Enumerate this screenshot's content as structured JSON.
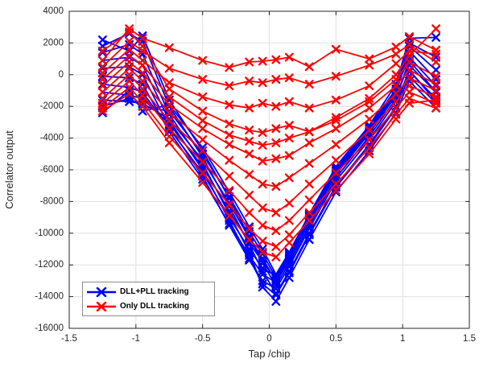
{
  "axes": {
    "xlabel": "Tap /chip",
    "ylabel": "Correlator output",
    "xlim": [
      -1.5,
      1.5
    ],
    "ylim": [
      -16000,
      4000
    ],
    "xticks": [
      -1.5,
      -1,
      -0.5,
      0,
      0.5,
      1,
      1.5
    ],
    "yticks": [
      4000,
      2000,
      0,
      -2000,
      -4000,
      -6000,
      -8000,
      -10000,
      -12000,
      -14000,
      -16000
    ],
    "grid": true,
    "grid_color": "#e0e0e0",
    "axis_color": "#262626",
    "tick_label_color": "#262626"
  },
  "legend": {
    "position": "lower left",
    "items": [
      {
        "label": "DLL+PLL tracking",
        "color": "#0000ff"
      },
      {
        "label": "Only DLL tracking",
        "color": "#ff0000"
      }
    ]
  },
  "chart_data": {
    "type": "line",
    "title": "",
    "xlabel": "Tap /chip",
    "ylabel": "Correlator output",
    "xlim": [
      -1.5,
      1.5
    ],
    "ylim": [
      -16000,
      4000
    ],
    "marker": "x",
    "x": [
      -1.25,
      -1.05,
      -0.95,
      -0.75,
      -0.5,
      -0.3,
      -0.15,
      -0.05,
      0.05,
      0.15,
      0.3,
      0.5,
      0.75,
      0.95,
      1.05,
      1.25
    ],
    "series": [
      {
        "group": "DLL+PLL tracking",
        "color": "#0000ff",
        "values": [
          2200,
          1500,
          2450,
          -1600,
          -4800,
          -7800,
          -10200,
          -11900,
          -13300,
          -11900,
          -9500,
          -6500,
          -3900,
          -1500,
          900,
          -1100
        ]
      },
      {
        "group": "DLL+PLL tracking",
        "color": "#0000ff",
        "values": [
          1800,
          2600,
          2100,
          -2000,
          -5200,
          -8300,
          -10700,
          -12400,
          -13800,
          -12400,
          -10000,
          -7000,
          -4400,
          -2000,
          300,
          -1700
        ]
      },
      {
        "group": "DLL+PLL tracking",
        "color": "#0000ff",
        "values": [
          1400,
          1900,
          1300,
          -2500,
          -5600,
          -8800,
          -11200,
          -13400,
          -14300,
          -12800,
          -10400,
          -7400,
          -4800,
          -2400,
          -400,
          -2100
        ]
      },
      {
        "group": "DLL+PLL tracking",
        "color": "#0000ff",
        "values": [
          900,
          1100,
          600,
          -2900,
          -6000,
          -9200,
          -11600,
          -13200,
          -13900,
          -12500,
          -10100,
          -7100,
          -4500,
          -2100,
          -100,
          -1800
        ]
      },
      {
        "group": "DLL+PLL tracking",
        "color": "#0000ff",
        "values": [
          400,
          500,
          0,
          -3300,
          -6400,
          -9500,
          -11700,
          -13000,
          -13500,
          -12100,
          -9700,
          -6700,
          -4100,
          -1700,
          200,
          -1500
        ]
      },
      {
        "group": "DLL+PLL tracking",
        "color": "#0000ff",
        "values": [
          -100,
          -200,
          -600,
          -3600,
          -6600,
          -9400,
          -11400,
          -12600,
          -13100,
          -11700,
          -9300,
          -6300,
          -3700,
          -1300,
          600,
          -1100
        ]
      },
      {
        "group": "DLL+PLL tracking",
        "color": "#0000ff",
        "values": [
          -600,
          -800,
          -1100,
          -3400,
          -6200,
          -9000,
          -11000,
          -12200,
          -12700,
          -11300,
          -8900,
          -5900,
          -3300,
          -900,
          1100,
          -700
        ]
      },
      {
        "group": "DLL+PLL tracking",
        "color": "#0000ff",
        "values": [
          -1100,
          -1300,
          -1500,
          -3100,
          -5800,
          -8600,
          -10600,
          -11800,
          -12900,
          -11500,
          -9100,
          -6100,
          -3500,
          -1100,
          1500,
          -300
        ]
      },
      {
        "group": "DLL+PLL tracking",
        "color": "#0000ff",
        "values": [
          -1600,
          -1700,
          -1800,
          -2800,
          -5400,
          -8100,
          -10300,
          -11600,
          -13000,
          -11600,
          -9200,
          -6200,
          -3600,
          -1200,
          1800,
          300
        ]
      },
      {
        "group": "DLL+PLL tracking",
        "color": "#0000ff",
        "values": [
          -2000,
          -1500,
          -2000,
          -2300,
          -5000,
          -7700,
          -9900,
          -11300,
          -12800,
          -11400,
          -9000,
          -6000,
          -3400,
          -1000,
          2000,
          1100
        ]
      },
      {
        "group": "DLL+PLL tracking",
        "color": "#0000ff",
        "values": [
          -2400,
          -1000,
          -2300,
          -1900,
          -4600,
          -7400,
          -9600,
          -11000,
          -12600,
          -11200,
          -8800,
          -5800,
          -3200,
          -600,
          2300,
          2350
        ]
      },
      {
        "group": "Only DLL tracking",
        "color": "#ff0000",
        "values": [
          900,
          2900,
          2300,
          1700,
          900,
          450,
          800,
          850,
          950,
          1100,
          500,
          1600,
          1000,
          1750,
          2400,
          1550
        ]
      },
      {
        "group": "Only DLL tracking",
        "color": "#ff0000",
        "values": [
          500,
          2100,
          1500,
          400,
          -300,
          -700,
          -400,
          -500,
          -300,
          -200,
          -600,
          -100,
          600,
          1300,
          1900,
          800
        ]
      },
      {
        "group": "Only DLL tracking",
        "color": "#ff0000",
        "values": [
          100,
          1600,
          900,
          -500,
          -1400,
          -1900,
          -2100,
          -1800,
          -2000,
          -1700,
          -2100,
          -1600,
          -700,
          700,
          1500,
          1300
        ]
      },
      {
        "group": "Only DLL tracking",
        "color": "#ff0000",
        "values": [
          1500,
          2700,
          1800,
          -900,
          -2300,
          -3100,
          -3500,
          -3650,
          -3400,
          -3200,
          -3600,
          -2700,
          -1500,
          0,
          1200,
          2900
        ]
      },
      {
        "group": "Only DLL tracking",
        "color": "#ff0000",
        "values": [
          -300,
          1200,
          600,
          -1400,
          -2900,
          -3800,
          -4200,
          -4450,
          -4300,
          -4000,
          -3600,
          -2900,
          -1700,
          -300,
          800,
          -100
        ]
      },
      {
        "group": "Only DLL tracking",
        "color": "#ff0000",
        "values": [
          -700,
          800,
          100,
          -1900,
          -3400,
          -4400,
          -5000,
          -5450,
          -5300,
          -5100,
          -4300,
          -3400,
          -2100,
          -700,
          300,
          -600
        ]
      },
      {
        "group": "Only DLL tracking",
        "color": "#ff0000",
        "values": [
          -1100,
          400,
          -400,
          -2400,
          -4100,
          -5400,
          -6300,
          -6900,
          -7050,
          -6500,
          -5600,
          -4400,
          -2800,
          -1200,
          -200,
          -1000
        ]
      },
      {
        "group": "Only DLL tracking",
        "color": "#ff0000",
        "values": [
          -1500,
          0,
          -900,
          -2900,
          -4800,
          -6400,
          -7600,
          -8400,
          -8700,
          -8100,
          -6900,
          -5400,
          -3500,
          -1700,
          -700,
          -1400
        ]
      },
      {
        "group": "Only DLL tracking",
        "color": "#ff0000",
        "values": [
          -1800,
          -400,
          -1300,
          -3400,
          -5500,
          -7300,
          -8700,
          -9500,
          -9850,
          -9200,
          -7900,
          -6200,
          -4100,
          -2100,
          -1100,
          -1800
        ]
      },
      {
        "group": "Only DLL tracking",
        "color": "#ff0000",
        "values": [
          -2100,
          -800,
          -1700,
          -3900,
          -6200,
          -8200,
          -9700,
          -10500,
          -10850,
          -10100,
          -8700,
          -6900,
          -4600,
          -2500,
          -1500,
          -2100
        ]
      },
      {
        "group": "Only DLL tracking",
        "color": "#ff0000",
        "values": [
          -2300,
          -1200,
          -2000,
          -4300,
          -6800,
          -8900,
          -10400,
          -11200,
          -11500,
          -10600,
          -9200,
          -7300,
          -5000,
          -2800,
          -1800,
          -1600
        ]
      }
    ]
  }
}
